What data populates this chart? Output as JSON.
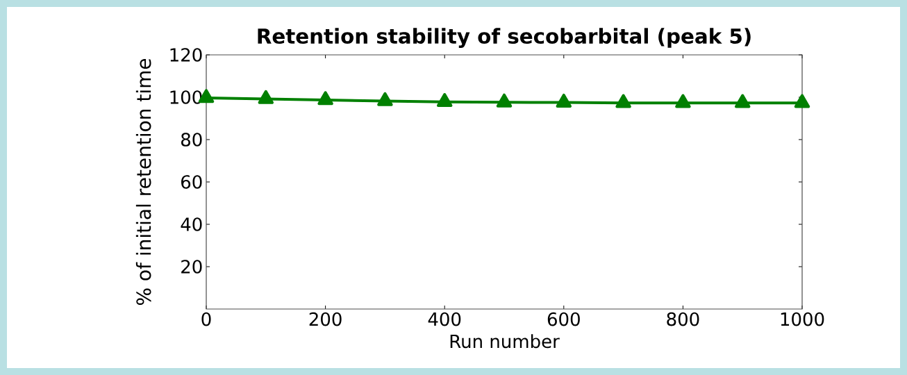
{
  "chart_data": {
    "type": "line",
    "title": "Retention stability of secobarbital (peak 5)",
    "xlabel": "Run number",
    "ylabel": "% of initial retention time",
    "x": [
      0,
      100,
      200,
      300,
      400,
      500,
      600,
      700,
      800,
      900,
      1000
    ],
    "series": [
      {
        "color": "#008000",
        "values": [
          99.7,
          99.2,
          98.7,
          98.2,
          97.8,
          97.6,
          97.5,
          97.3,
          97.3,
          97.3,
          97.3
        ]
      }
    ],
    "xlim": [
      0,
      1000
    ],
    "ylim": [
      0,
      120
    ],
    "xticks": [
      0,
      200,
      400,
      600,
      800,
      1000
    ],
    "yticks": [
      20,
      40,
      60,
      80,
      100,
      120
    ],
    "marker": "triangle",
    "line_style": "solid",
    "grid": false
  }
}
